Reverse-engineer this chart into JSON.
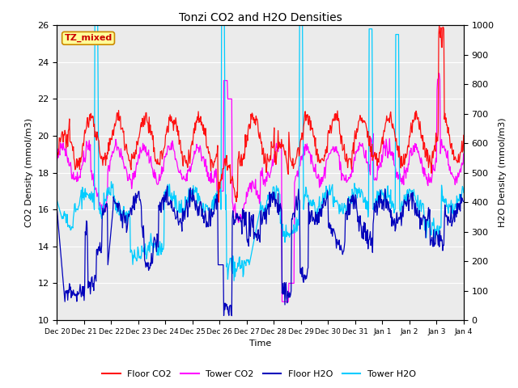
{
  "title": "Tonzi CO2 and H2O Densities",
  "xlabel": "Time",
  "ylabel_left": "CO2 Density (mmol/m3)",
  "ylabel_right": "H2O Density (mmol/m3)",
  "ylim_left": [
    10,
    26
  ],
  "ylim_right": [
    0,
    1000
  ],
  "yticks_left": [
    10,
    12,
    14,
    16,
    18,
    20,
    22,
    24,
    26
  ],
  "yticks_right": [
    0,
    100,
    200,
    300,
    400,
    500,
    600,
    700,
    800,
    900,
    1000
  ],
  "xtick_labels": [
    "Dec 20",
    "Dec 21",
    "Dec 22",
    "Dec 23",
    "Dec 24",
    "Dec 25",
    "Dec 26",
    "Dec 27",
    "Dec 28",
    "Dec 29",
    "Dec 30",
    "Dec 31",
    "Jan 1",
    "Jan 2",
    "Jan 3",
    "Jan 4"
  ],
  "annotation_text": "TZ_mixed",
  "annotation_color": "#cc0000",
  "annotation_bg": "#ffff99",
  "annotation_border": "#cc8800",
  "colors": {
    "floor_co2": "#ff1010",
    "tower_co2": "#ff00ff",
    "floor_h2o": "#0000bb",
    "tower_h2o": "#00ccff"
  },
  "legend_labels": [
    "Floor CO2",
    "Tower CO2",
    "Floor H2O",
    "Tower H2O"
  ],
  "plot_bg": "#ebebeb",
  "grid_color": "#ffffff"
}
